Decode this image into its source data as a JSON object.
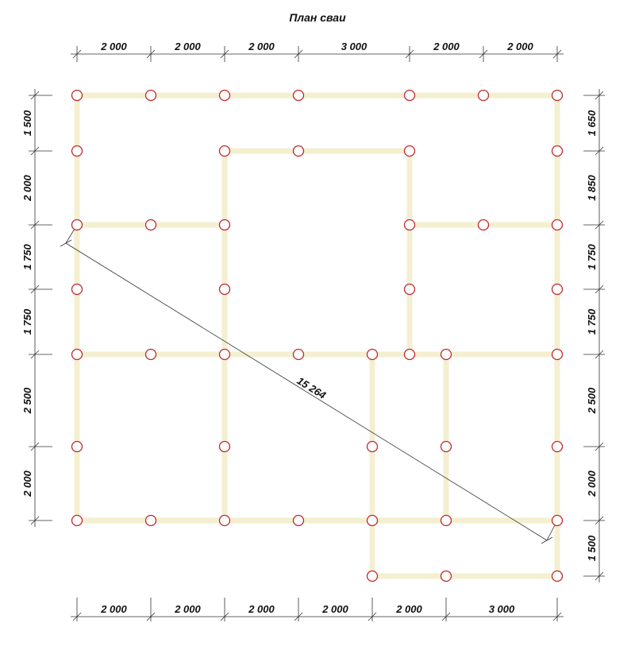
{
  "title": "План сваи",
  "colors": {
    "beam": "#f3efd0",
    "pile_stroke": "#c0282d",
    "pile_fill": "#ffffff",
    "dim_line": "#333333"
  },
  "top_dimensions": [
    "2 000",
    "2 000",
    "2 000",
    "3 000",
    "2 000",
    "2 000"
  ],
  "bottom_dimensions": [
    "2 000",
    "2 000",
    "2 000",
    "2 000",
    "2 000",
    "3 000"
  ],
  "left_dimensions": [
    "1 500",
    "2 000",
    "1 750",
    "1 750",
    "2 500",
    "2 000"
  ],
  "right_dimensions": [
    "1 650",
    "1 850",
    "1 750",
    "1 750",
    "2 500",
    "2 000",
    "1 500"
  ],
  "diagonal_label": "15 264"
}
